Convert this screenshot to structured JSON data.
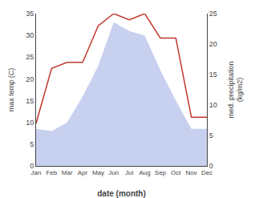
{
  "chart_data": {
    "type": "line",
    "xlabel": "date (month)",
    "ylabel": "max temp (C)",
    "y2label": "med. precipitation\n(kg/m2)",
    "categories": [
      "Jan",
      "Feb",
      "Mar",
      "Apr",
      "May",
      "Jun",
      "Jul",
      "Aug",
      "Sep",
      "Oct",
      "Nov",
      "Dec"
    ],
    "series": [
      {
        "type": "area",
        "color": "#c8d0f0",
        "values": [
          8.5,
          8.0,
          10.0,
          16.0,
          23.0,
          33.0,
          31.0,
          30.0,
          22.0,
          15.0,
          8.5,
          8.5
        ]
      },
      {
        "type": "line",
        "color": "#c0392b",
        "axis": "y2",
        "values": [
          7.0,
          16.0,
          17.0,
          17.0,
          23.0,
          25.0,
          24.0,
          25.0,
          21.0,
          21.0,
          8.0,
          8.0
        ]
      }
    ],
    "ylim": [
      0,
      35
    ],
    "yticks": [
      0,
      5,
      10,
      15,
      20,
      25,
      30,
      35
    ],
    "y2lim": [
      0,
      25
    ],
    "y2ticks": [
      0,
      5,
      10,
      15,
      20,
      25
    ],
    "grid": false
  }
}
